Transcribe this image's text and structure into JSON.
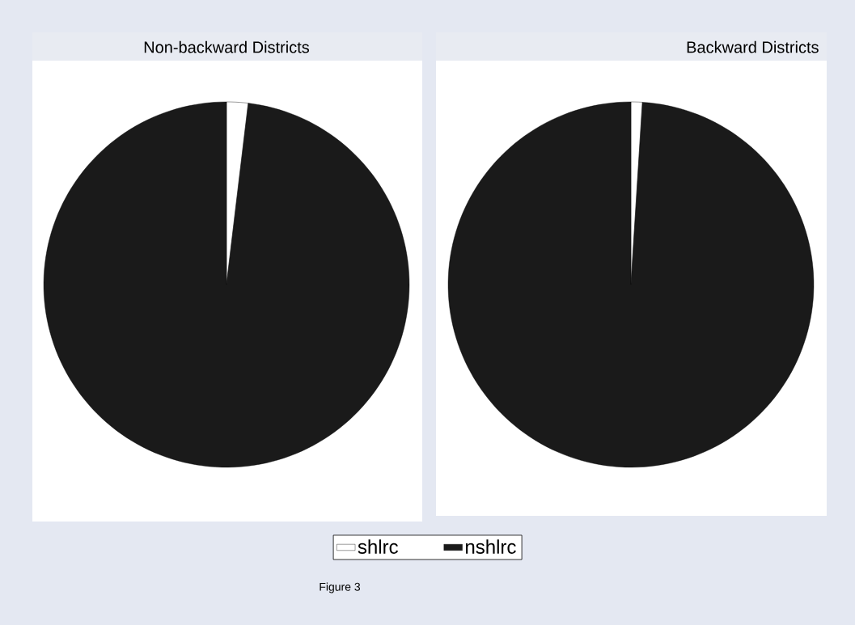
{
  "chart_data": [
    {
      "type": "pie",
      "title": "Non-backward Districts",
      "categories": [
        "shlrc",
        "nshlrc"
      ],
      "values": [
        1.9,
        98.1
      ],
      "colors": [
        "#ffffff",
        "#1a1a1a"
      ],
      "legend": "bottom",
      "annotations": [
        "Figure 3"
      ]
    },
    {
      "type": "pie",
      "title": "Backward Districts",
      "categories": [
        null,
        null
      ],
      "values": [
        1.0,
        99.0
      ],
      "colors": [
        "#ffffff",
        "#1a1a1a"
      ]
    }
  ]
}
